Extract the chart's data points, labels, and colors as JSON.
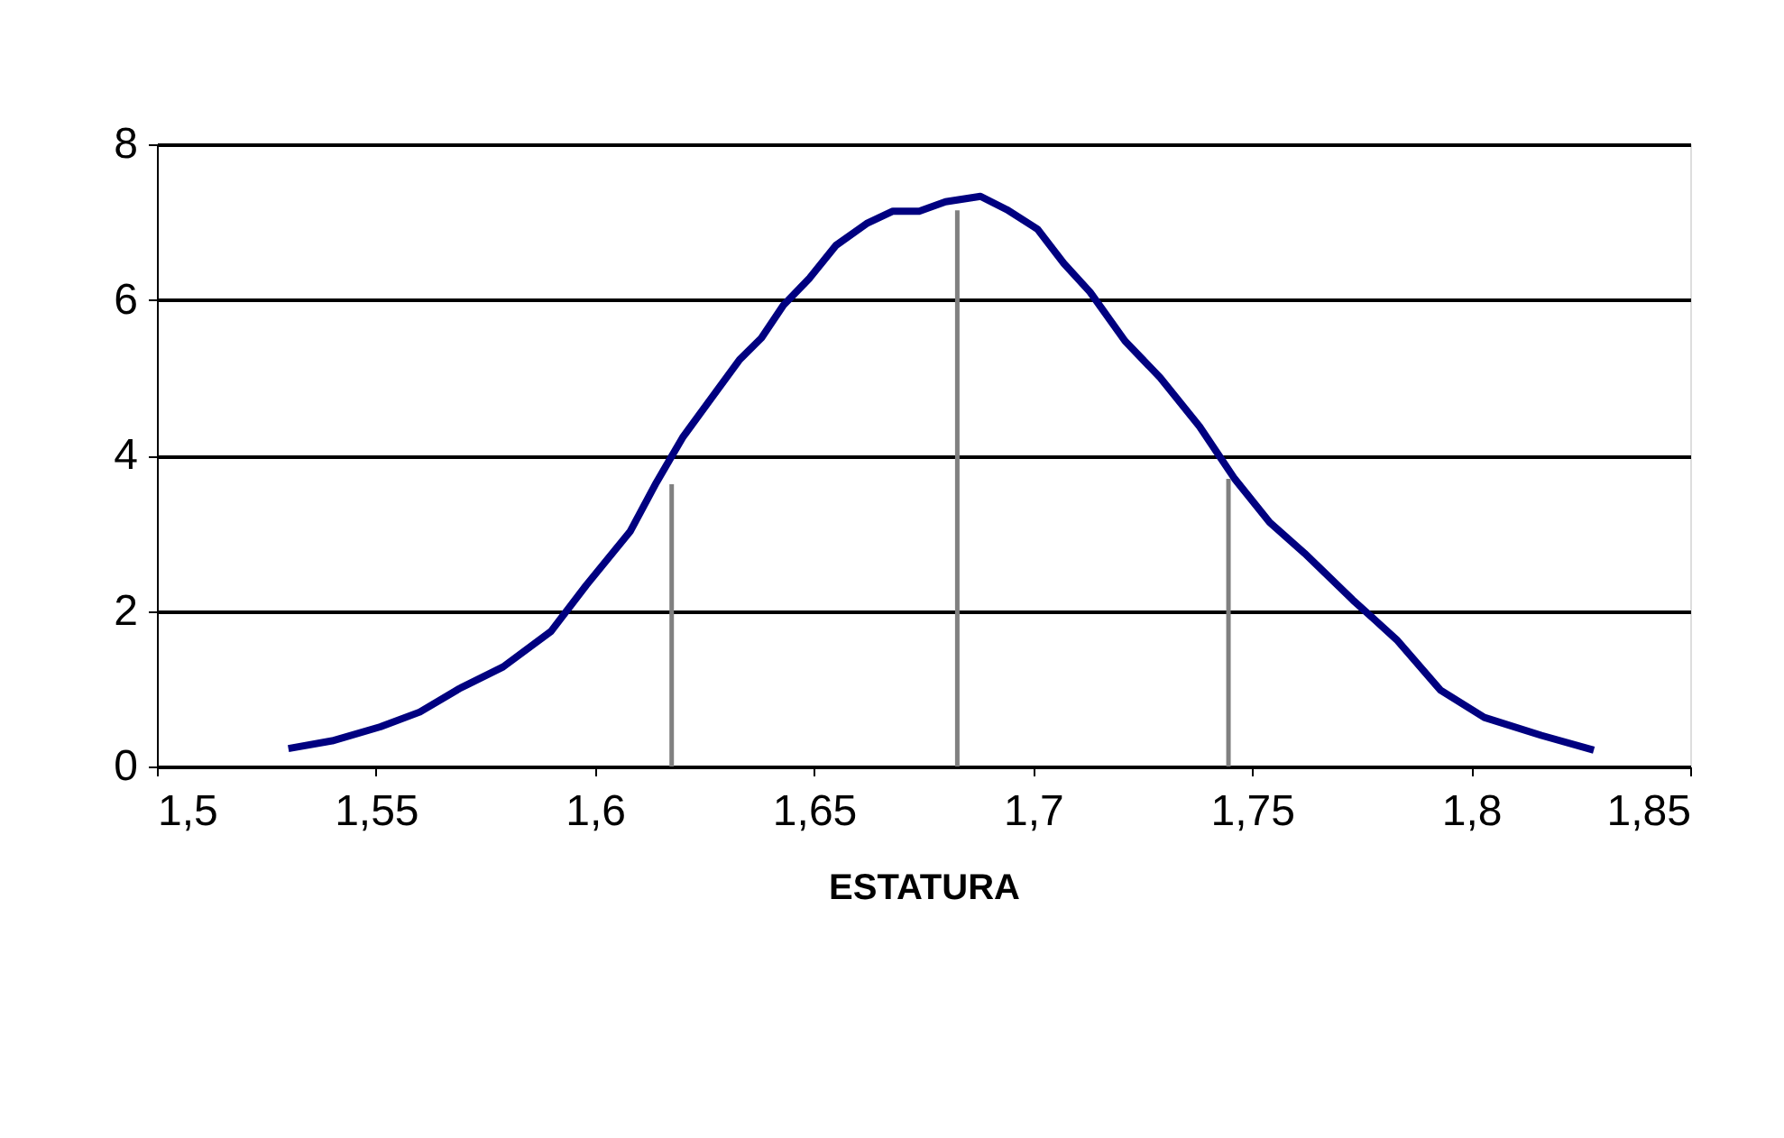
{
  "chart_data": {
    "type": "line",
    "xlabel": "ESTATURA",
    "xlim": [
      1.5,
      1.85
    ],
    "xticks": [
      {
        "value": 1.5,
        "label": "1,5"
      },
      {
        "value": 1.55,
        "label": "1,55"
      },
      {
        "value": 1.6,
        "label": "1,6"
      },
      {
        "value": 1.65,
        "label": "1,65"
      },
      {
        "value": 1.7,
        "label": "1,7"
      },
      {
        "value": 1.75,
        "label": "1,75"
      },
      {
        "value": 1.8,
        "label": "1,8"
      },
      {
        "value": 1.85,
        "label": "1,85"
      }
    ],
    "ylim": [
      0,
      8
    ],
    "yticks": [
      0,
      2,
      4,
      6,
      8
    ],
    "grid": "y",
    "marker": "none",
    "line_style": "solid",
    "series": [
      {
        "color": "#000080",
        "x": [
          1.53,
          1.54,
          1.551,
          1.56,
          1.569,
          1.579,
          1.59,
          1.598,
          1.608,
          1.614,
          1.62,
          1.627,
          1.633,
          1.638,
          1.643,
          1.649,
          1.655,
          1.662,
          1.668,
          1.674,
          1.68,
          1.688,
          1.694,
          1.701,
          1.707,
          1.713,
          1.721,
          1.729,
          1.738,
          1.746,
          1.754,
          1.762,
          1.773,
          1.783,
          1.793,
          1.803,
          1.816,
          1.828
        ],
        "values": [
          0.23,
          0.33,
          0.51,
          0.7,
          1.0,
          1.28,
          1.74,
          2.33,
          3.02,
          3.65,
          4.23,
          4.77,
          5.23,
          5.51,
          5.93,
          6.28,
          6.7,
          6.98,
          7.14,
          7.14,
          7.26,
          7.33,
          7.16,
          6.91,
          6.47,
          6.1,
          5.47,
          5.0,
          4.37,
          3.7,
          3.14,
          2.74,
          2.14,
          1.63,
          0.98,
          0.63,
          0.4,
          0.21
        ]
      },
      {
        "color": "#808080",
        "x": [
          1.6175,
          1.6175
        ],
        "values": [
          0,
          3.63
        ]
      },
      {
        "color": "#808080",
        "x": [
          1.6827,
          1.6827
        ],
        "values": [
          0,
          7.15
        ]
      },
      {
        "color": "#808080",
        "x": [
          1.7446,
          1.7446
        ],
        "values": [
          0,
          3.7
        ]
      }
    ]
  }
}
